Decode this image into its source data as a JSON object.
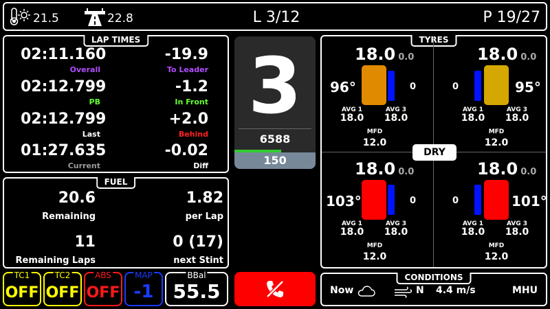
{
  "topbar": {
    "air_temp": "21.5",
    "track_temp": "22.8",
    "lap": "L 3/12",
    "position": "P 19/27"
  },
  "lap_times": {
    "title": "LAP TIMES",
    "overall": {
      "value": "02:11.160",
      "label": "Overall"
    },
    "to_leader": {
      "value": "-19.9",
      "label": "To Leader"
    },
    "pb": {
      "value": "02:12.799",
      "label": "PB"
    },
    "in_front": {
      "value": "-1.2",
      "label": "In Front"
    },
    "last": {
      "value": "02:12.799",
      "label": "Last"
    },
    "behind": {
      "value": "+2.0",
      "label": "Behind"
    },
    "current": {
      "value": "01:27.635",
      "label": "Current"
    },
    "diff": {
      "value": "-0.02",
      "label": "Diff"
    }
  },
  "fuel": {
    "title": "FUEL",
    "remaining": {
      "value": "20.6",
      "label": "Remaining"
    },
    "per_lap": {
      "value": "1.82",
      "label": "per Lap"
    },
    "remaining_laps": {
      "value": "11",
      "label": "Remaining Laps"
    },
    "next_stint": {
      "value": "0 (17)",
      "label": "next Stint"
    }
  },
  "gear": {
    "value": "3",
    "rpm": "6588",
    "speed": "150",
    "rpm_fraction": 0.58
  },
  "tyres": {
    "title": "TYRES",
    "compound": "DRY",
    "fl": {
      "pressure": "18.0",
      "pressure_delta": "0.0",
      "temp": "96°",
      "brake": "0",
      "avg1": "18.0",
      "avg3": "18.0",
      "mfd": "12.0",
      "color": "#e08a00"
    },
    "fr": {
      "pressure": "18.0",
      "pressure_delta": "0.0",
      "temp": "95°",
      "brake": "0",
      "avg1": "18.0",
      "avg3": "18.0",
      "mfd": "12.0",
      "color": "#d4a800"
    },
    "rl": {
      "pressure": "18.0",
      "pressure_delta": "0.0",
      "temp": "103°",
      "brake": "0",
      "avg1": "18.0",
      "avg3": "18.0",
      "mfd": "12.0",
      "color": "#ff0000"
    },
    "rr": {
      "pressure": "18.0",
      "pressure_delta": "0.0",
      "temp": "101°",
      "brake": "0",
      "avg1": "18.0",
      "avg3": "18.0",
      "mfd": "12.0",
      "color": "#ff0000"
    },
    "avg1_label": "AVG 1",
    "avg3_label": "AVG 3",
    "mfd_label": "MFD"
  },
  "aids": {
    "tc1": {
      "label": "TC1",
      "value": "OFF",
      "color": "#ffff00"
    },
    "tc2": {
      "label": "TC2",
      "value": "OFF",
      "color": "#ffff00"
    },
    "abs": {
      "label": "ABS",
      "value": "OFF",
      "color": "#ff1a1a"
    },
    "map": {
      "label": "MAP",
      "value": "-1",
      "color": "#1a3cff"
    },
    "bbal": {
      "label": "BBal",
      "value": "55.5"
    }
  },
  "conditions": {
    "title": "CONDITIONS",
    "now": "Now",
    "wind_dir": "N",
    "wind_speed": "4.4 m/s",
    "session": "MHU"
  }
}
